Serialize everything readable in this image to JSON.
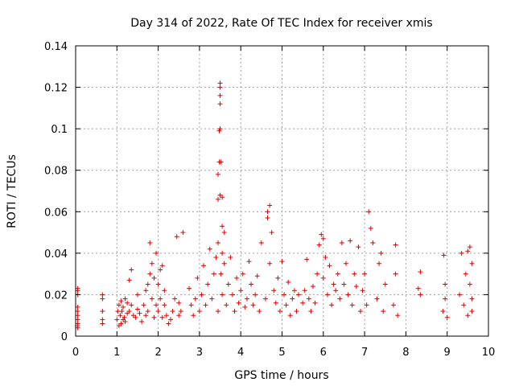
{
  "chart_data": {
    "type": "scatter",
    "title": "Day 314 of 2022, Rate Of TEC Index for receiver xmis",
    "xlabel": "GPS time / hours",
    "ylabel": "ROTI / TECUs",
    "xlim": [
      0,
      10
    ],
    "ylim": [
      0,
      0.14
    ],
    "x_ticks": [
      "0",
      "1",
      "2",
      "3",
      "4",
      "5",
      "6",
      "7",
      "8",
      "9",
      "10"
    ],
    "y_ticks": [
      "0",
      "0.02",
      "0.04",
      "0.06",
      "0.08",
      "0.1",
      "0.12",
      "0.14"
    ],
    "grid": true,
    "marker": "+",
    "color": "#e00000",
    "series": [
      {
        "x": [
          0.05,
          0.05,
          0.05,
          0.05,
          0.05,
          0.05,
          0.05,
          0.05,
          0.05,
          0.05,
          0.65,
          0.65,
          0.65,
          0.65,
          0.65,
          1.0,
          1.02,
          1.05,
          1.05,
          1.08,
          1.1,
          1.1,
          1.12,
          1.15,
          1.15,
          1.18,
          1.2,
          1.2,
          1.25,
          1.25,
          1.3,
          1.3,
          1.35,
          1.35,
          1.4,
          1.45,
          1.5,
          1.5,
          1.55,
          1.6,
          1.65,
          1.7,
          1.7,
          1.75,
          1.75,
          1.8,
          1.8,
          1.85,
          1.85,
          1.9,
          1.9,
          1.95,
          1.95,
          2.0,
          2.0,
          2.05,
          2.05,
          2.1,
          2.1,
          2.15,
          2.15,
          2.2,
          2.25,
          2.3,
          2.35,
          2.4,
          2.45,
          2.5,
          2.5,
          2.55,
          2.6,
          2.75,
          2.8,
          2.85,
          2.9,
          2.95,
          3.0,
          3.05,
          3.1,
          3.15,
          3.2,
          3.25,
          3.3,
          3.35,
          3.4,
          3.45,
          3.45,
          3.45,
          3.45,
          3.48,
          3.48,
          3.5,
          3.5,
          3.5,
          3.5,
          3.5,
          3.5,
          3.52,
          3.52,
          3.55,
          3.55,
          3.55,
          3.55,
          3.6,
          3.6,
          3.65,
          3.7,
          3.75,
          3.8,
          3.85,
          3.9,
          3.95,
          4.0,
          4.05,
          4.1,
          4.15,
          4.2,
          4.25,
          4.3,
          4.35,
          4.4,
          4.45,
          4.5,
          4.6,
          4.65,
          4.65,
          4.7,
          4.7,
          4.75,
          4.8,
          4.85,
          4.9,
          4.95,
          5.0,
          5.05,
          5.1,
          5.15,
          5.2,
          5.25,
          5.3,
          5.35,
          5.4,
          5.5,
          5.55,
          5.6,
          5.65,
          5.7,
          5.75,
          5.8,
          5.85,
          5.9,
          5.95,
          6.0,
          6.0,
          6.05,
          6.1,
          6.15,
          6.2,
          6.25,
          6.3,
          6.35,
          6.4,
          6.45,
          6.5,
          6.55,
          6.6,
          6.65,
          6.7,
          6.75,
          6.8,
          6.85,
          6.9,
          6.95,
          7.0,
          7.05,
          7.1,
          7.15,
          7.2,
          7.3,
          7.35,
          7.4,
          7.45,
          7.5,
          7.7,
          7.75,
          7.75,
          7.8,
          8.3,
          8.35,
          8.35,
          8.9,
          8.92,
          8.95,
          8.95,
          9.0,
          9.3,
          9.35,
          9.4,
          9.45,
          9.5,
          9.5,
          9.55,
          9.55,
          9.6,
          9.6,
          9.6
        ],
        "y": [
          0.022,
          0.02,
          0.012,
          0.01,
          0.008,
          0.006,
          0.005,
          0.004,
          0.014,
          0.023,
          0.02,
          0.018,
          0.012,
          0.008,
          0.006,
          0.008,
          0.012,
          0.005,
          0.015,
          0.01,
          0.006,
          0.017,
          0.012,
          0.008,
          0.014,
          0.009,
          0.018,
          0.007,
          0.011,
          0.016,
          0.027,
          0.012,
          0.032,
          0.015,
          0.01,
          0.009,
          0.013,
          0.02,
          0.011,
          0.007,
          0.015,
          0.022,
          0.01,
          0.025,
          0.012,
          0.03,
          0.045,
          0.018,
          0.035,
          0.009,
          0.028,
          0.04,
          0.015,
          0.012,
          0.025,
          0.018,
          0.032,
          0.009,
          0.034,
          0.015,
          0.022,
          0.01,
          0.006,
          0.008,
          0.012,
          0.018,
          0.048,
          0.016,
          0.01,
          0.012,
          0.05,
          0.023,
          0.015,
          0.01,
          0.018,
          0.028,
          0.012,
          0.02,
          0.034,
          0.015,
          0.025,
          0.042,
          0.018,
          0.03,
          0.038,
          0.045,
          0.066,
          0.078,
          0.012,
          0.099,
          0.084,
          0.1,
          0.112,
          0.116,
          0.12,
          0.122,
          0.068,
          0.084,
          0.03,
          0.053,
          0.067,
          0.04,
          0.02,
          0.05,
          0.035,
          0.015,
          0.025,
          0.038,
          0.02,
          0.012,
          0.028,
          0.016,
          0.022,
          0.03,
          0.014,
          0.018,
          0.036,
          0.025,
          0.015,
          0.02,
          0.029,
          0.012,
          0.045,
          0.018,
          0.06,
          0.057,
          0.063,
          0.035,
          0.05,
          0.022,
          0.016,
          0.028,
          0.012,
          0.036,
          0.02,
          0.015,
          0.026,
          0.01,
          0.018,
          0.022,
          0.012,
          0.02,
          0.016,
          0.022,
          0.037,
          0.018,
          0.012,
          0.024,
          0.016,
          0.03,
          0.044,
          0.049,
          0.047,
          0.028,
          0.038,
          0.02,
          0.034,
          0.015,
          0.025,
          0.022,
          0.03,
          0.018,
          0.045,
          0.025,
          0.035,
          0.02,
          0.046,
          0.015,
          0.03,
          0.024,
          0.043,
          0.012,
          0.022,
          0.03,
          0.015,
          0.06,
          0.052,
          0.045,
          0.018,
          0.035,
          0.04,
          0.012,
          0.025,
          0.015,
          0.044,
          0.03,
          0.01,
          0.023,
          0.02,
          0.031,
          0.012,
          0.039,
          0.018,
          0.025,
          0.009,
          0.02,
          0.04,
          0.015,
          0.03,
          0.01,
          0.041,
          0.025,
          0.043,
          0.018,
          0.035,
          0.012
        ]
      }
    ]
  }
}
